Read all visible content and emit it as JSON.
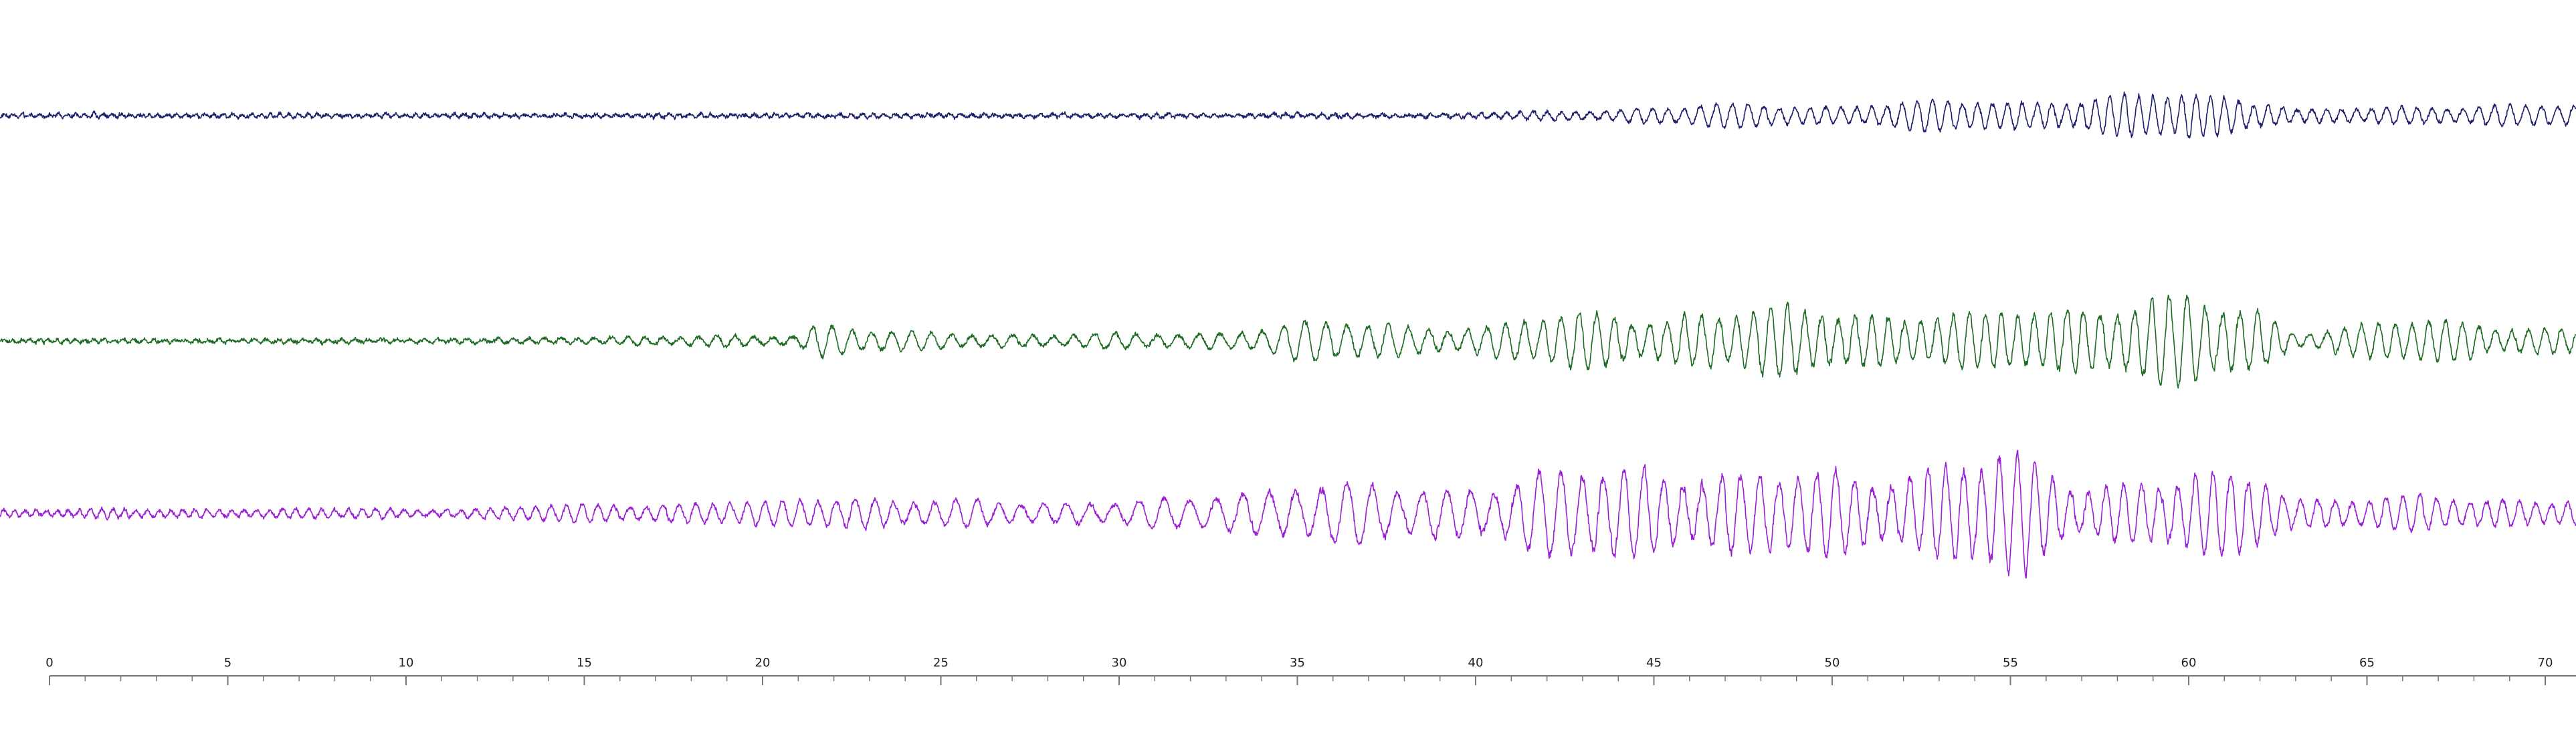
{
  "chart_data": {
    "type": "line",
    "title": "",
    "xlabel": "",
    "ylabel": "",
    "xlim": [
      -0.1,
      71
    ],
    "grid": false,
    "legend": "none",
    "x_ticks": {
      "major_step": 5,
      "minor_step": 1,
      "labels": [
        "0",
        "5",
        "10",
        "15",
        "20",
        "25",
        "30",
        "35",
        "40",
        "45",
        "50",
        "55",
        "60",
        "65",
        "70"
      ]
    },
    "series": [
      {
        "color": "#1f1f6b",
        "envelope": [
          [
            0,
            3
          ],
          [
            5,
            4
          ],
          [
            10,
            3.5
          ],
          [
            20,
            3.5
          ],
          [
            30,
            3.5
          ],
          [
            40,
            4
          ],
          [
            42,
            8
          ],
          [
            44,
            14
          ],
          [
            46,
            20
          ],
          [
            48,
            22
          ],
          [
            50,
            20
          ],
          [
            53,
            28
          ],
          [
            56,
            32
          ],
          [
            58,
            36
          ],
          [
            60,
            45
          ],
          [
            62,
            38
          ],
          [
            63,
            12
          ],
          [
            65,
            14
          ],
          [
            67,
            20
          ],
          [
            69,
            22
          ],
          [
            71,
            18
          ]
        ],
        "periods": [
          [
            0,
            0.25
          ],
          [
            40,
            0.35
          ],
          [
            45,
            0.45
          ],
          [
            60,
            0.4
          ],
          [
            71,
            0.45
          ]
        ]
      },
      {
        "color": "#1e6b23",
        "envelope": [
          [
            0,
            3
          ],
          [
            10,
            4
          ],
          [
            14,
            5
          ],
          [
            15,
            9
          ],
          [
            20,
            10
          ],
          [
            21,
            12
          ],
          [
            21.5,
            40
          ],
          [
            23,
            22
          ],
          [
            25,
            15
          ],
          [
            28,
            14
          ],
          [
            32,
            14
          ],
          [
            33,
            20
          ],
          [
            35,
            38
          ],
          [
            38,
            32
          ],
          [
            40,
            28
          ],
          [
            43,
            55
          ],
          [
            47,
            52
          ],
          [
            48,
            62
          ],
          [
            50,
            68
          ],
          [
            52,
            50
          ],
          [
            54,
            48
          ],
          [
            56,
            72
          ],
          [
            58,
            70
          ],
          [
            60,
            85
          ],
          [
            62,
            65
          ],
          [
            63,
            20
          ],
          [
            65,
            30
          ],
          [
            67,
            45
          ],
          [
            69,
            30
          ],
          [
            71,
            20
          ]
        ],
        "periods": [
          [
            0,
            0.25
          ],
          [
            21,
            0.55
          ],
          [
            35,
            0.6
          ],
          [
            43,
            0.5
          ],
          [
            55,
            0.45
          ],
          [
            60,
            0.5
          ],
          [
            71,
            0.45
          ]
        ]
      },
      {
        "color": "#9b1fd6",
        "envelope": [
          [
            0,
            7
          ],
          [
            5,
            9
          ],
          [
            10,
            9
          ],
          [
            12,
            10
          ],
          [
            15,
            18
          ],
          [
            20,
            22
          ],
          [
            21,
            28
          ],
          [
            22,
            42
          ],
          [
            24,
            24
          ],
          [
            30,
            24
          ],
          [
            32,
            28
          ],
          [
            33,
            42
          ],
          [
            35,
            62
          ],
          [
            37,
            55
          ],
          [
            38,
            45
          ],
          [
            40,
            62
          ],
          [
            42,
            78
          ],
          [
            45,
            92
          ],
          [
            48,
            78
          ],
          [
            52,
            85
          ],
          [
            55,
            110
          ],
          [
            57,
            62
          ],
          [
            60,
            70
          ],
          [
            62,
            80
          ],
          [
            63,
            30
          ],
          [
            65,
            32
          ],
          [
            67,
            32
          ],
          [
            69,
            30
          ],
          [
            71,
            28
          ]
        ],
        "periods": [
          [
            0,
            0.3
          ],
          [
            21,
            0.5
          ],
          [
            33,
            0.75
          ],
          [
            38,
            0.7
          ],
          [
            45,
            0.55
          ],
          [
            55,
            0.5
          ],
          [
            60,
            0.5
          ],
          [
            71,
            0.45
          ]
        ]
      }
    ]
  }
}
